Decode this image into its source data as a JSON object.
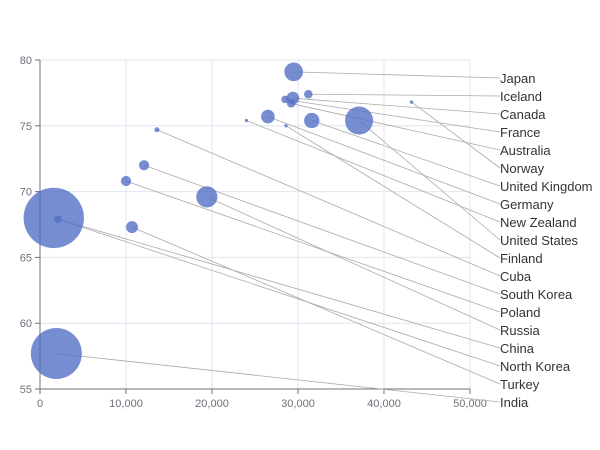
{
  "chart_data": {
    "type": "scatter",
    "xlim": [
      0,
      50000
    ],
    "ylim": [
      55,
      80
    ],
    "x_ticks": [
      "0",
      "10,000",
      "20,000",
      "30,000",
      "40,000",
      "50,000"
    ],
    "y_ticks": [
      "55",
      "60",
      "65",
      "70",
      "75",
      "80"
    ],
    "grid": true,
    "legend": "none",
    "bubble_color": "#5470c6",
    "points": [
      {
        "name": "Japan",
        "x": 29500,
        "y": 79.1,
        "size": 2.2
      },
      {
        "name": "Iceland",
        "x": 31200,
        "y": 77.4,
        "size": 1.0
      },
      {
        "name": "Canada",
        "x": 29400,
        "y": 77.1,
        "size": 1.5
      },
      {
        "name": "France",
        "x": 28500,
        "y": 77.0,
        "size": 0.9
      },
      {
        "name": "Australia",
        "x": 29200,
        "y": 76.7,
        "size": 1.0
      },
      {
        "name": "Norway",
        "x": 43200,
        "y": 76.8,
        "size": 0.4
      },
      {
        "name": "United Kingdom",
        "x": 31600,
        "y": 75.4,
        "size": 1.8
      },
      {
        "name": "Germany",
        "x": 26500,
        "y": 75.7,
        "size": 1.6
      },
      {
        "name": "New Zealand",
        "x": 24000,
        "y": 75.4,
        "size": 0.3
      },
      {
        "name": "United States",
        "x": 37100,
        "y": 75.4,
        "size": 3.3
      },
      {
        "name": "Finland",
        "x": 28600,
        "y": 75.0,
        "size": 0.4
      },
      {
        "name": "Cuba",
        "x": 13600,
        "y": 74.7,
        "size": 0.6
      },
      {
        "name": "South Korea",
        "x": 12100,
        "y": 72.0,
        "size": 1.2
      },
      {
        "name": "Poland",
        "x": 10000,
        "y": 70.8,
        "size": 1.2
      },
      {
        "name": "Russia",
        "x": 19400,
        "y": 69.6,
        "size": 2.5
      },
      {
        "name": "China",
        "x": 1600,
        "y": 68.0,
        "size": 7.1
      },
      {
        "name": "North Korea",
        "x": 2100,
        "y": 67.9,
        "size": 0.9
      },
      {
        "name": "Turkey",
        "x": 10700,
        "y": 67.3,
        "size": 1.4
      },
      {
        "name": "India",
        "x": 1900,
        "y": 57.7,
        "size": 6.0
      }
    ]
  }
}
